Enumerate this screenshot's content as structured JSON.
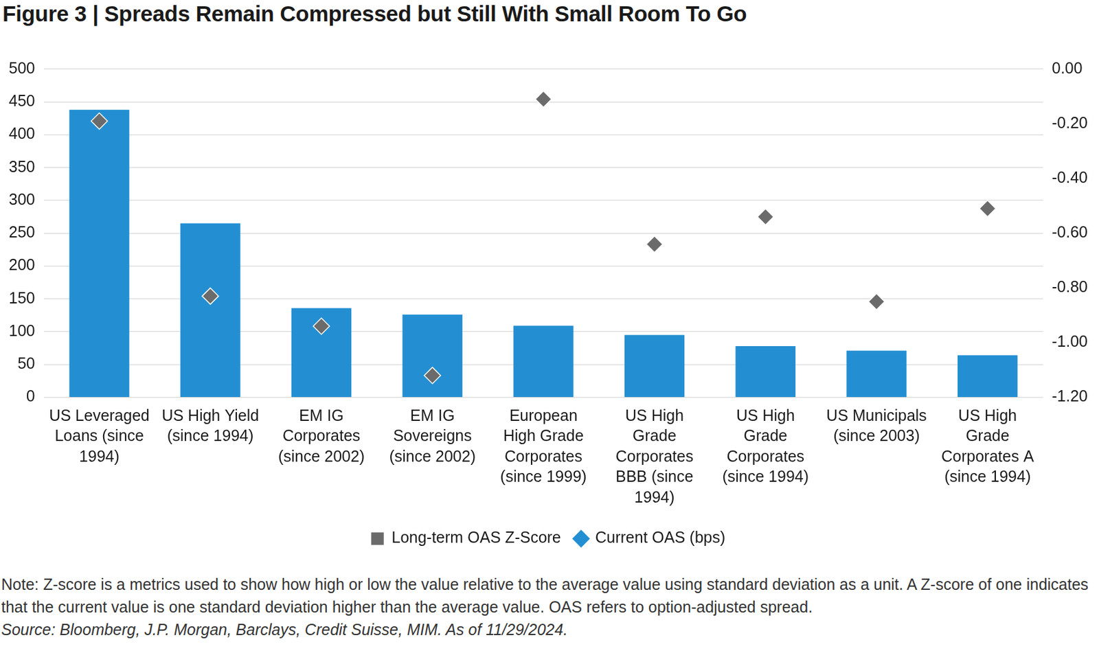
{
  "chart_data": {
    "type": "bar",
    "title": "Figure 3 | Spreads Remain Compressed but Still With Small Room To Go",
    "categories": [
      "US Leveraged Loans (since 1994)",
      "US High Yield (since 1994)",
      "EM IG Corporates (since 2002)",
      "EM IG Sovereigns (since 2002)",
      "European High Grade Corporates (since 1999)",
      "US High Grade Corporates BBB (since 1994)",
      "US High Grade Corporates (since 1994)",
      "US Municipals (since 2003)",
      "US High Grade Corporates A (since 1994)"
    ],
    "series": [
      {
        "name": "Current OAS (bps)",
        "type": "bar",
        "color": "#238fd2",
        "values": [
          438,
          265,
          136,
          126,
          109,
          95,
          78,
          71,
          64
        ]
      },
      {
        "name": "Long-term OAS Z-Score",
        "type": "scatter",
        "marker": "diamond",
        "color": "#6b6b6b",
        "axis": "y2",
        "values": [
          -0.19,
          -0.83,
          -0.94,
          -1.12,
          -0.11,
          -0.64,
          -0.54,
          -0.85,
          -0.51
        ]
      }
    ],
    "ylim": [
      0,
      500
    ],
    "yticks": [
      0,
      50,
      100,
      150,
      200,
      250,
      300,
      350,
      400,
      450,
      500
    ],
    "y2lim": [
      -1.2,
      0
    ],
    "y2ticks": [
      {
        "value": -1.2,
        "label": "-1.20"
      },
      {
        "value": -1.0,
        "label": "-1.00"
      },
      {
        "value": -0.8,
        "label": "-0.80"
      },
      {
        "value": -0.6,
        "label": "-0.60"
      },
      {
        "value": -0.4,
        "label": "-0.40"
      },
      {
        "value": -0.2,
        "label": "-0.20"
      },
      {
        "value": 0,
        "label": "0.00"
      }
    ],
    "grid": true,
    "legend": "bottom",
    "note": "Note: Z-score is a metrics used to show how high or low the value relative to the average value using standard deviation as a unit. A Z-score of one indicates that the current value is one standard deviation higher than the average value. OAS refers to option-adjusted spread.",
    "source": "Source: Bloomberg, J.P. Morgan, Barclays, Credit Suisse, MIM. As of 11/29/2024."
  }
}
